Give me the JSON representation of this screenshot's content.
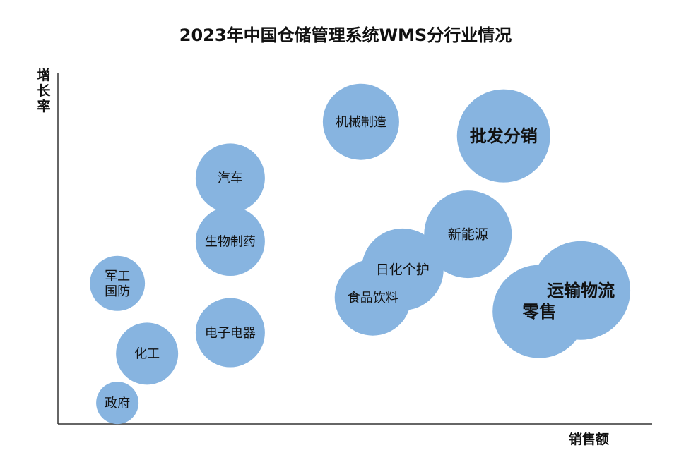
{
  "chart_data": {
    "type": "bubble",
    "title": "2023年中国仓储管理系统WMS分行业情况",
    "xlabel": "销售额",
    "ylabel": "增长率",
    "grid": false,
    "bubble_color": "#87B4E0",
    "points": [
      {
        "label": "政府",
        "x": 1.0,
        "y": 0.3,
        "size": 30
      },
      {
        "label": "化工",
        "x": 1.5,
        "y": 1.0,
        "size": 44
      },
      {
        "label": "军工\n国防",
        "x": 1.0,
        "y": 2.0,
        "size": 39
      },
      {
        "label": "电子电器",
        "x": 2.9,
        "y": 1.3,
        "size": 49
      },
      {
        "label": "生物制药",
        "x": 2.9,
        "y": 2.6,
        "size": 49
      },
      {
        "label": "汽车",
        "x": 2.9,
        "y": 3.5,
        "size": 49
      },
      {
        "label": "机械制造",
        "x": 5.1,
        "y": 4.3,
        "size": 54
      },
      {
        "label": "批发分销",
        "x": 7.5,
        "y": 4.1,
        "size": 66
      },
      {
        "label": "新能源",
        "x": 6.9,
        "y": 2.7,
        "size": 62
      },
      {
        "label": "日化个护",
        "x": 5.8,
        "y": 2.2,
        "size": 58
      },
      {
        "label": "食品饮料",
        "x": 5.3,
        "y": 1.8,
        "size": 54
      },
      {
        "label": "运输物流",
        "x": 8.8,
        "y": 1.9,
        "size": 70
      },
      {
        "label": "零售",
        "x": 8.1,
        "y": 1.6,
        "size": 66
      }
    ]
  }
}
